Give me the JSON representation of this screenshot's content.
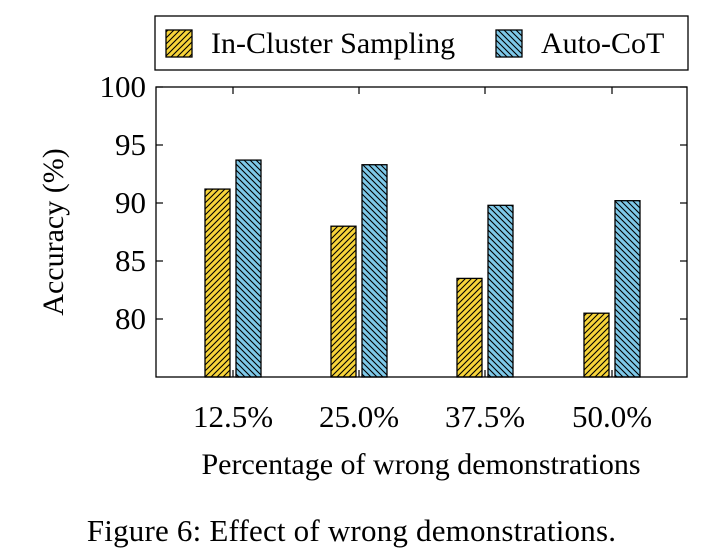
{
  "chart_data": {
    "type": "bar",
    "categories": [
      "12.5%",
      "25.0%",
      "37.5%",
      "50.0%"
    ],
    "series": [
      {
        "name": "In-Cluster Sampling",
        "values": [
          91.2,
          88.0,
          83.5,
          80.5
        ],
        "color": "#F7D43A"
      },
      {
        "name": "Auto-CoT",
        "values": [
          93.7,
          93.3,
          89.8,
          90.2
        ],
        "color": "#7EC8E8"
      }
    ],
    "xlabel": "Percentage of wrong demonstrations",
    "ylabel": "Accuracy (%)",
    "ylim": [
      75,
      100
    ],
    "yticks": [
      80,
      85,
      90,
      95,
      100
    ],
    "legend_position": "top"
  },
  "caption": "Figure 6:  Effect of wrong demonstrations."
}
